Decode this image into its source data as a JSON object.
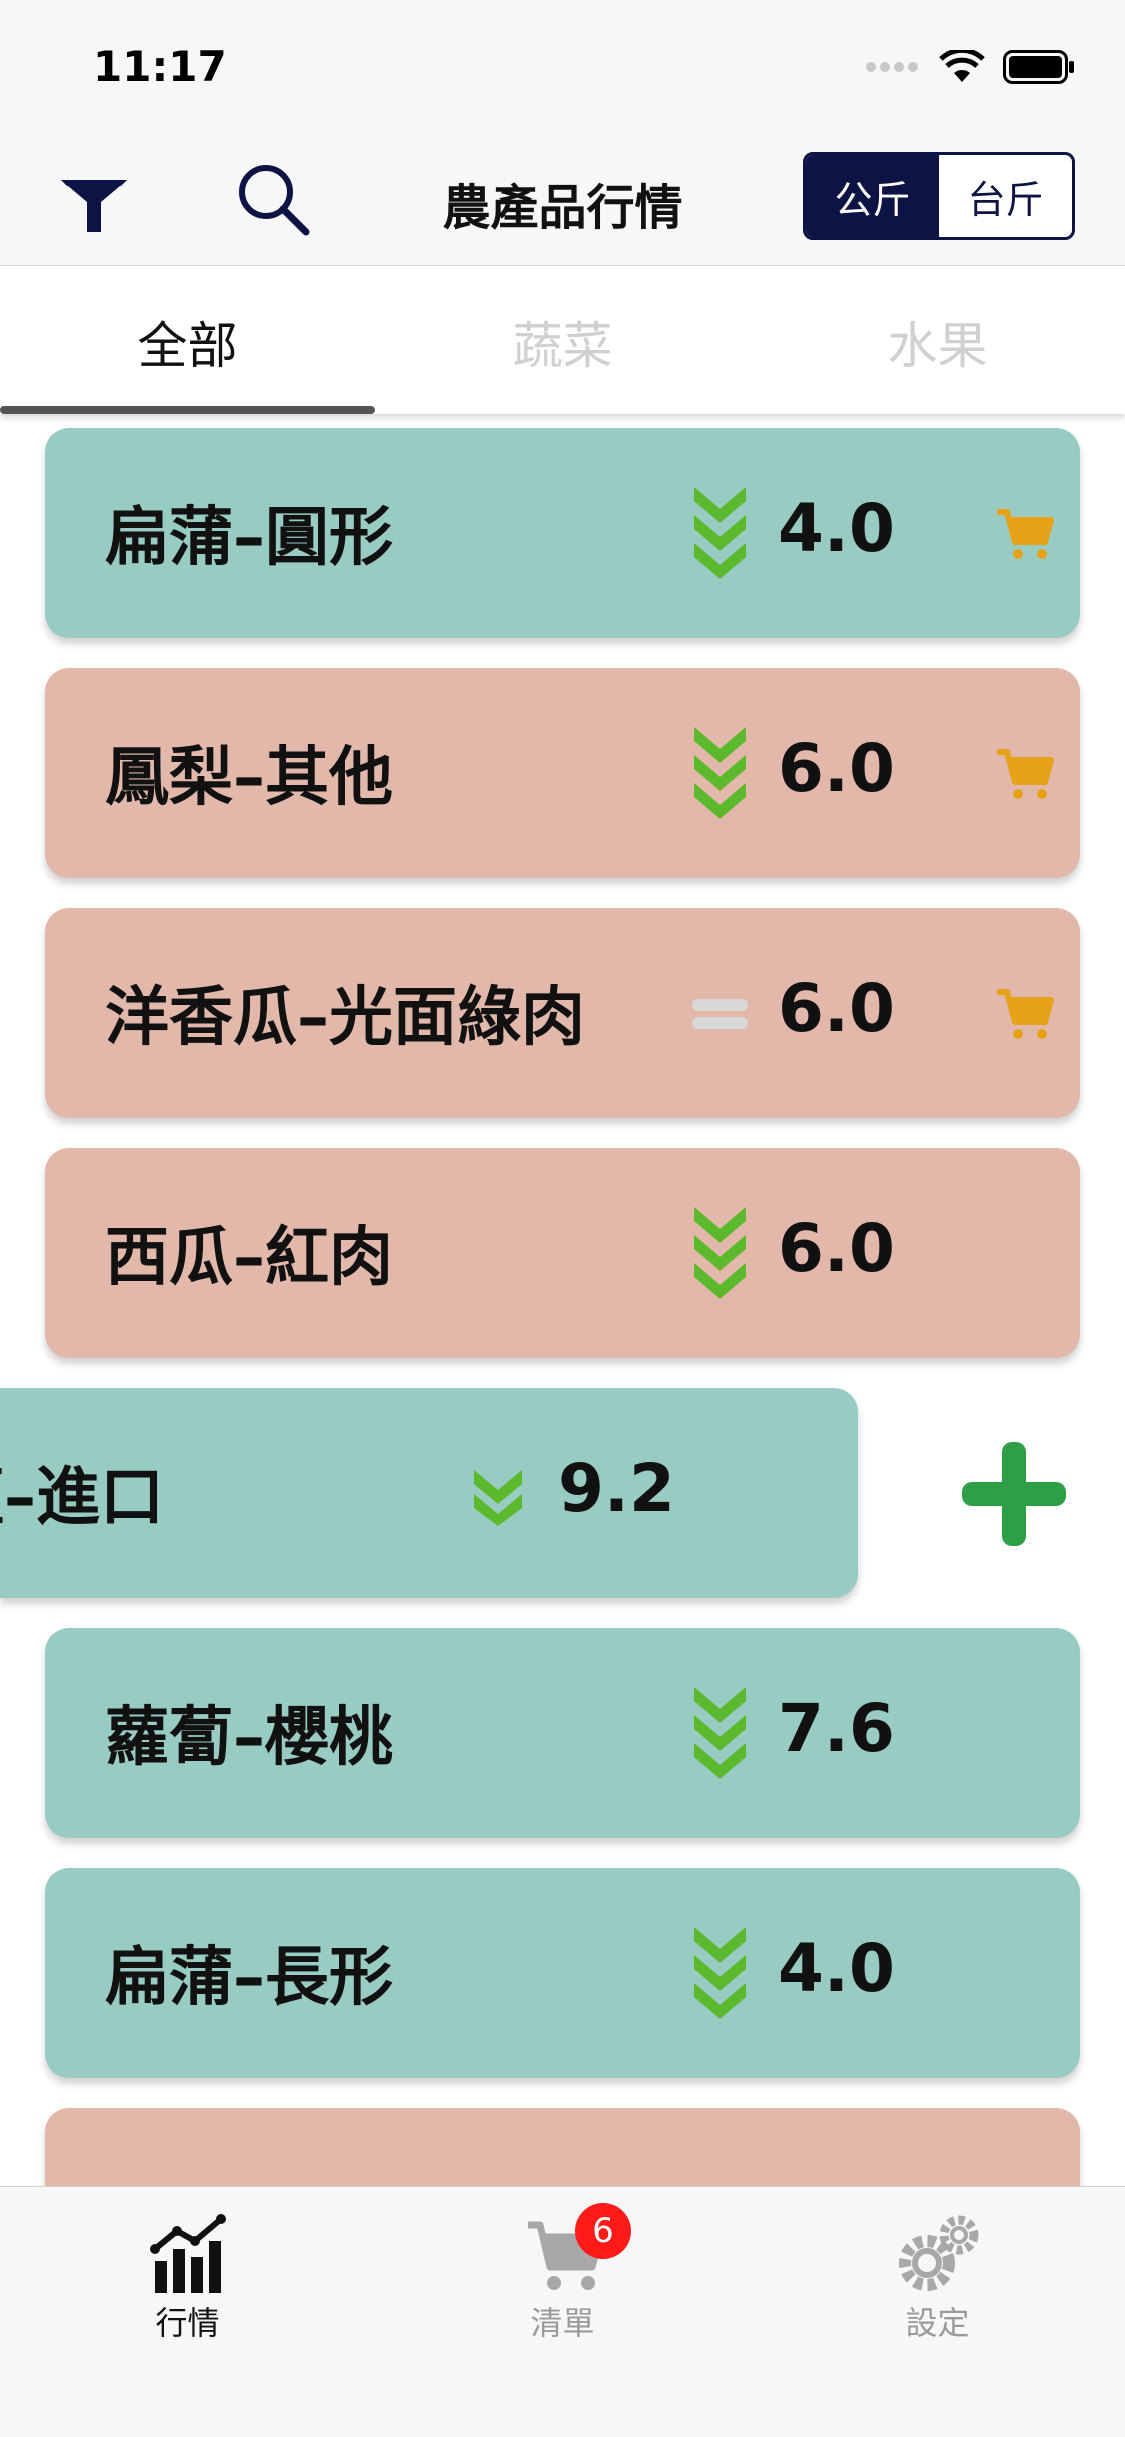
{
  "status": {
    "time": "11:17"
  },
  "header": {
    "title": "農產品行情",
    "unit_kg": "公斤",
    "unit_tai": "台斤"
  },
  "tabs": [
    {
      "label": "全部"
    },
    {
      "label": "蔬菜"
    },
    {
      "label": "水果"
    }
  ],
  "items": [
    {
      "name": "扁蒲–圓形",
      "price": "4.0",
      "trend": "down",
      "kind": "veg",
      "in_cart": true
    },
    {
      "name": "鳳梨–其他",
      "price": "6.0",
      "trend": "down",
      "kind": "fruit",
      "in_cart": true
    },
    {
      "name": "洋香瓜–光面綠肉",
      "price": "6.0",
      "trend": "flat",
      "kind": "fruit",
      "in_cart": true
    },
    {
      "name": "西瓜–紅肉",
      "price": "6.0",
      "trend": "down",
      "kind": "fruit",
      "in_cart": false
    },
    {
      "name": "藍–進口",
      "price": "9.2",
      "trend": "down-small",
      "kind": "veg",
      "in_cart": false,
      "swiped": true
    },
    {
      "name": "蘿蔔–櫻桃",
      "price": "7.6",
      "trend": "down",
      "kind": "veg",
      "in_cart": false
    },
    {
      "name": "扁蒲–長形",
      "price": "4.0",
      "trend": "down",
      "kind": "veg",
      "in_cart": false
    },
    {
      "name": "",
      "price": "",
      "trend": "",
      "kind": "fruit",
      "in_cart": false
    }
  ],
  "tabbar": [
    {
      "label": "行情",
      "icon": "chart-bars-icon"
    },
    {
      "label": "清單",
      "icon": "cart-icon",
      "badge": "6"
    },
    {
      "label": "設定",
      "icon": "gears-icon"
    }
  ],
  "colors": {
    "veg": "#98cbc1",
    "fruit": "#e2b8ab",
    "trend_down": "#5cb82c",
    "cart": "#e6a219",
    "navy": "#0e1346",
    "add": "#2e9e47"
  }
}
